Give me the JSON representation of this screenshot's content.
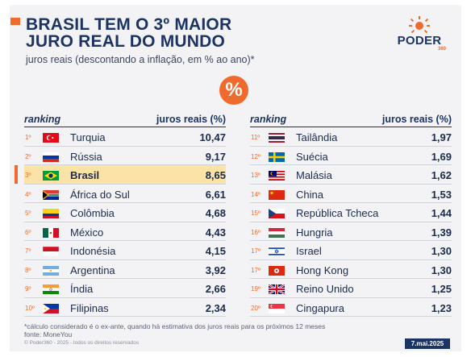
{
  "header": {
    "title_line1": "BRASIL TEM O 3º MAIOR",
    "title_line2": "JURO REAL DO MUNDO",
    "subtitle": "juros reais (descontando a inflação, em % ao ano)*",
    "badge_symbol": "%"
  },
  "logo": {
    "text": "PODER",
    "sub": "360",
    "icon": "sun-icon"
  },
  "colors": {
    "accent": "#ef6a2c",
    "navy": "#1c3463",
    "highlight": "#fbe2a6",
    "background": "#f3f3f5"
  },
  "table_left": {
    "col_rank": "ranking",
    "col_value": "juros reais (%)"
  },
  "table_right": {
    "col_rank": "ranking",
    "col_value": "juros reais (%)"
  },
  "chart_data": {
    "type": "table",
    "title": "BRASIL TEM O 3º MAIOR JURO REAL DO MUNDO",
    "subtitle": "juros reais (descontando a inflação, em % ao ano)*",
    "columns": [
      "ranking",
      "juros reais (%)"
    ],
    "highlight_rank": "3º",
    "rows": [
      {
        "rank": "1º",
        "country": "Turquia",
        "value": "10,47",
        "flag": "turkey"
      },
      {
        "rank": "2º",
        "country": "Rússia",
        "value": "9,17",
        "flag": "russia"
      },
      {
        "rank": "3º",
        "country": "Brasil",
        "value": "8,65",
        "flag": "brazil"
      },
      {
        "rank": "4º",
        "country": "África do Sul",
        "value": "6,61",
        "flag": "south-africa"
      },
      {
        "rank": "5º",
        "country": "Colômbia",
        "value": "4,68",
        "flag": "colombia"
      },
      {
        "rank": "6º",
        "country": "México",
        "value": "4,43",
        "flag": "mexico"
      },
      {
        "rank": "7º",
        "country": "Indonésia",
        "value": "4,15",
        "flag": "indonesia"
      },
      {
        "rank": "8º",
        "country": "Argentina",
        "value": "3,92",
        "flag": "argentina"
      },
      {
        "rank": "9º",
        "country": "Índia",
        "value": "2,66",
        "flag": "india"
      },
      {
        "rank": "10º",
        "country": "Filipinas",
        "value": "2,34",
        "flag": "philippines"
      },
      {
        "rank": "11º",
        "country": "Tailândia",
        "value": "1,97",
        "flag": "thailand"
      },
      {
        "rank": "12º",
        "country": "Suécia",
        "value": "1,69",
        "flag": "sweden"
      },
      {
        "rank": "13º",
        "country": "Malásia",
        "value": "1,62",
        "flag": "malaysia"
      },
      {
        "rank": "14º",
        "country": "China",
        "value": "1,53",
        "flag": "china"
      },
      {
        "rank": "15º",
        "country": "República Tcheca",
        "value": "1,44",
        "flag": "czech"
      },
      {
        "rank": "16º",
        "country": "Hungria",
        "value": "1,39",
        "flag": "hungary"
      },
      {
        "rank": "17º",
        "country": "Israel",
        "value": "1,30",
        "flag": "israel"
      },
      {
        "rank": "17º",
        "country": "Hong Kong",
        "value": "1,30",
        "flag": "hong-kong"
      },
      {
        "rank": "19º",
        "country": "Reino Unido",
        "value": "1,25",
        "flag": "uk"
      },
      {
        "rank": "20º",
        "country": "Cingapura",
        "value": "1,23",
        "flag": "singapore"
      }
    ]
  },
  "footer": {
    "note": "*cálculo considerado é o ex-ante, quando há estimativa dos juros reais para os próximos 12 meses",
    "source": "fonte: MoneYou",
    "credit": "© Poder360 - 2025 - todos os direitos reservados",
    "date": "7.mai.2025"
  }
}
